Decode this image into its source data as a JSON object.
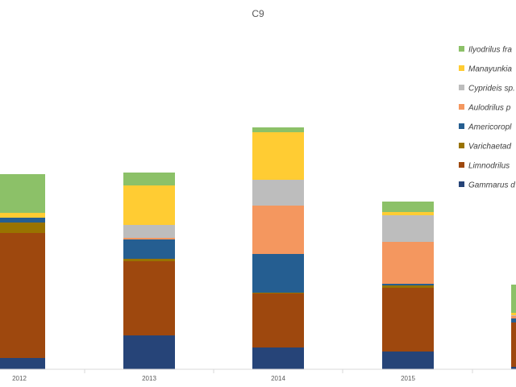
{
  "chart_data": {
    "type": "bar",
    "stacked": true,
    "title": "C9",
    "xlabel": "",
    "ylabel": "",
    "categories": [
      "2012",
      "2013",
      "2014",
      "2015",
      ""
    ],
    "ylim": [
      0,
      365
    ],
    "grid": false,
    "legend_position": "right",
    "series": [
      {
        "name": "Gammarus d",
        "color": "#264478",
        "values": [
          14,
          42,
          27,
          22,
          3
        ]
      },
      {
        "name": "Limnodrilus",
        "color": "#9E480E",
        "values": [
          155,
          92,
          67,
          79,
          55
        ]
      },
      {
        "name": "Varichaetad",
        "color": "#997300",
        "values": [
          13,
          3,
          1,
          3,
          0
        ]
      },
      {
        "name": "Americoropl",
        "color": "#255E91",
        "values": [
          6,
          24,
          48,
          2,
          5
        ]
      },
      {
        "name": "Aulodrilus p",
        "color": "#F4975F",
        "values": [
          0,
          2,
          60,
          52,
          3
        ]
      },
      {
        "name": "Cyprideis sp.",
        "color": "#BDBDBD",
        "values": [
          0,
          16,
          32,
          33,
          1
        ]
      },
      {
        "name": "Manayunkia",
        "color": "#FFCC33",
        "values": [
          6,
          49,
          59,
          4,
          3
        ]
      },
      {
        "name": "Ilyodrilus fra",
        "color": "#8CC168",
        "values": [
          48,
          16,
          6,
          13,
          35
        ]
      }
    ]
  }
}
